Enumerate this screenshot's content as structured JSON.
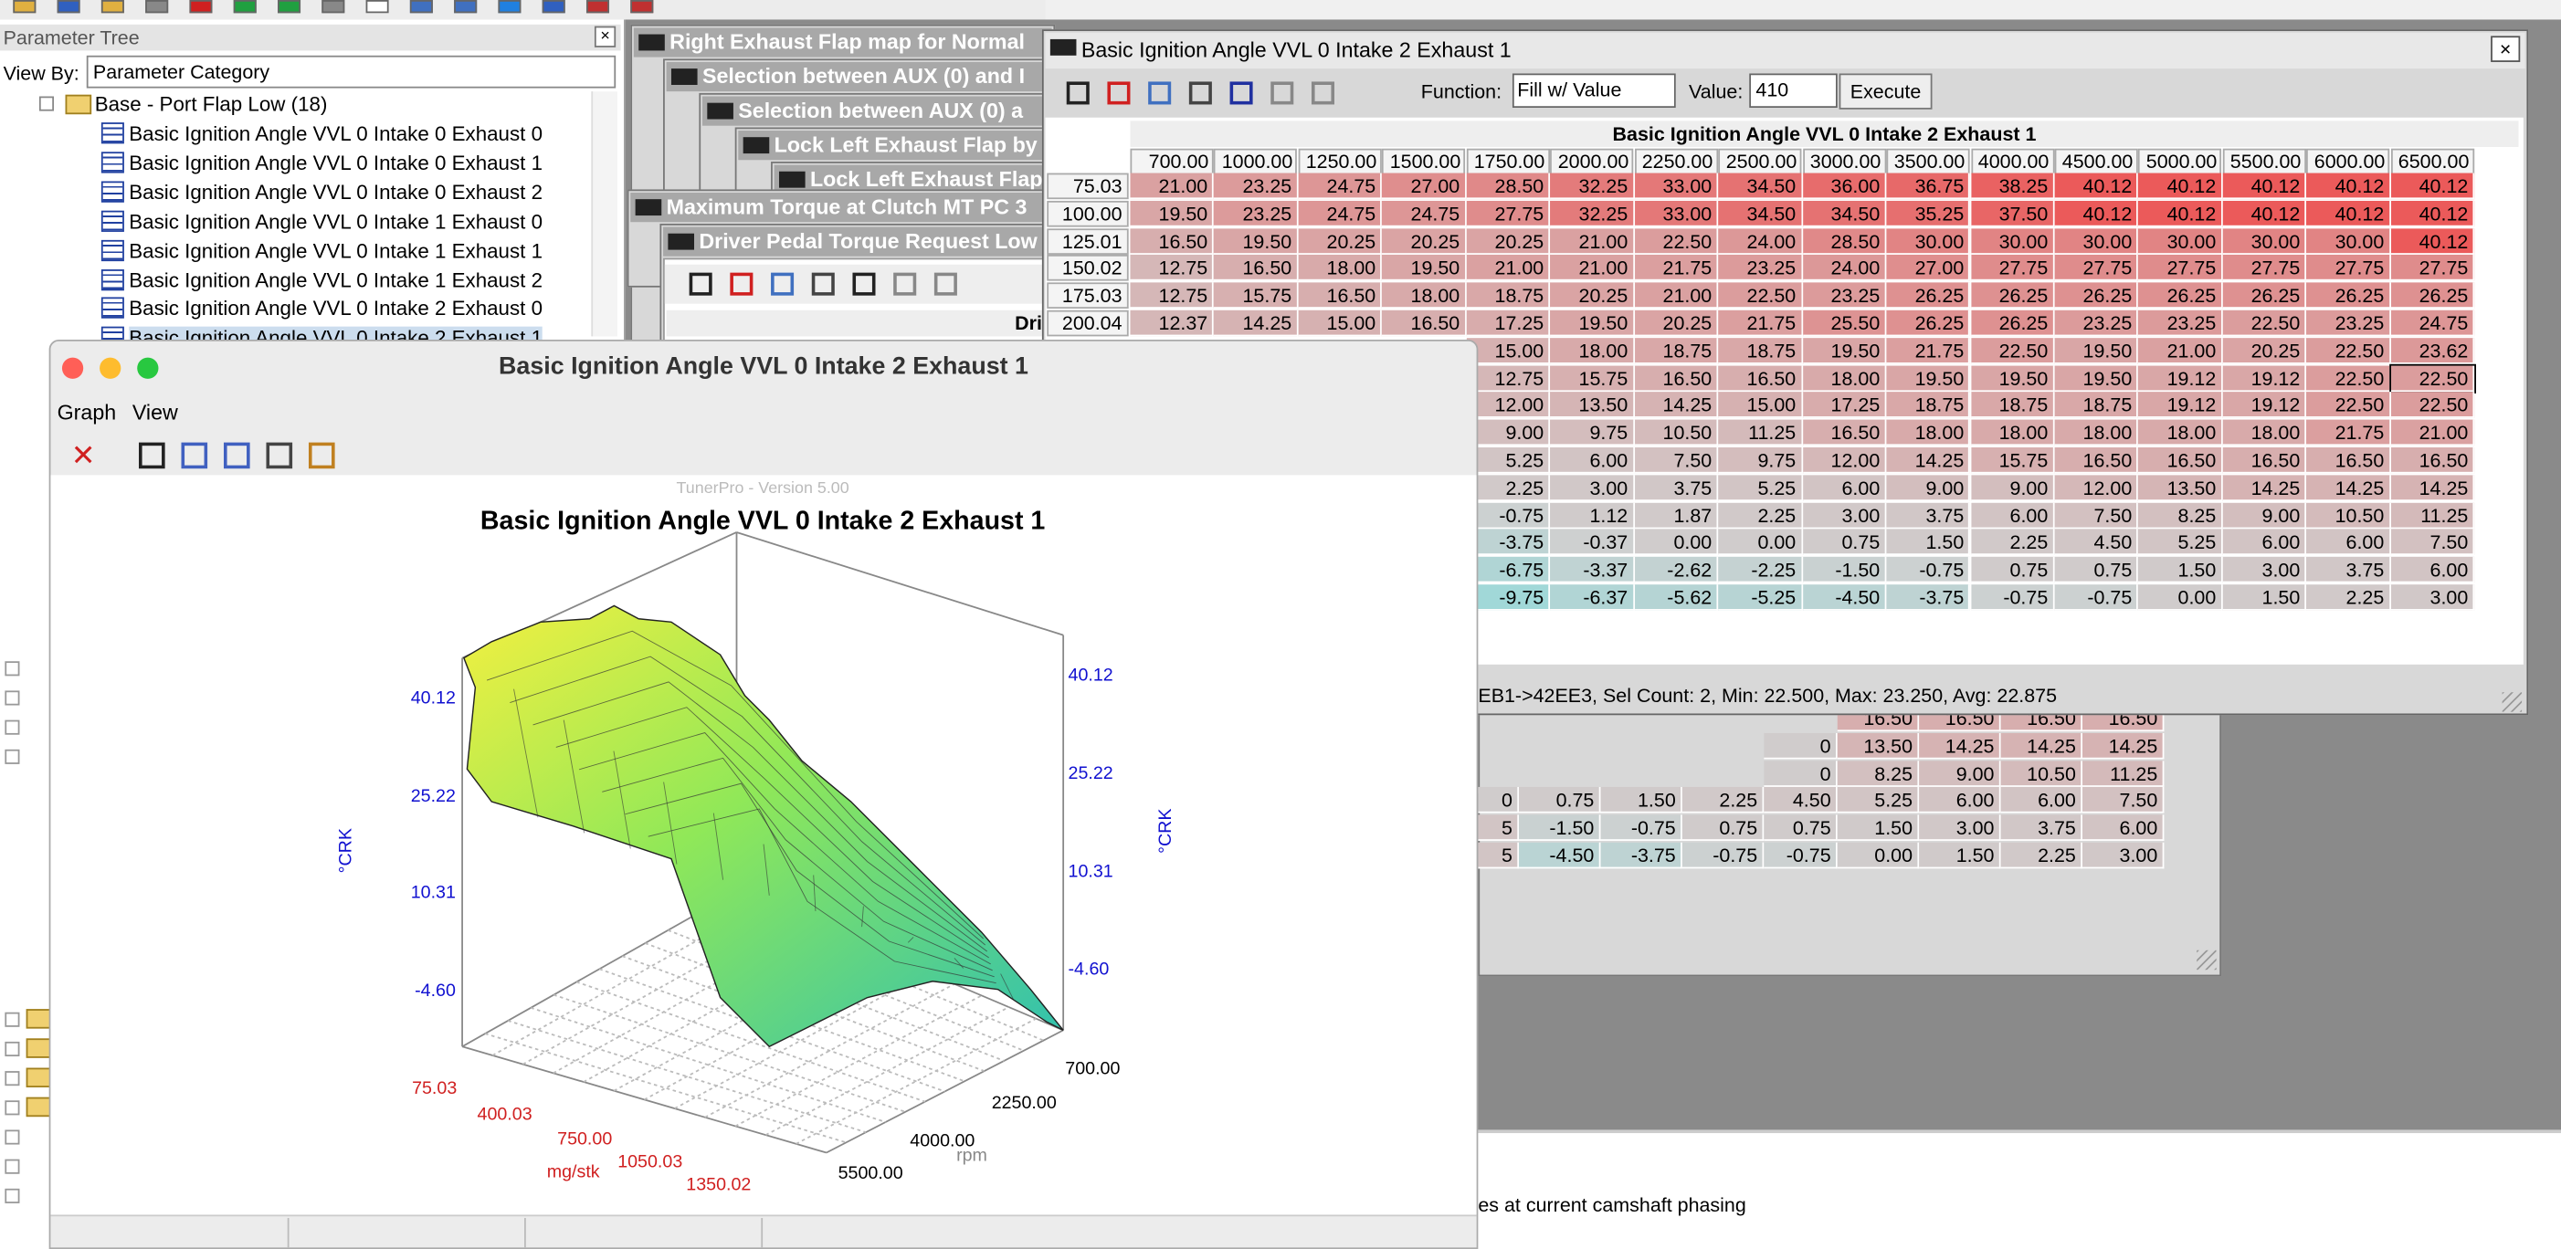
{
  "parameter_tree": {
    "title": "Parameter Tree",
    "view_by_label": "View By:",
    "view_by_value": "Parameter Category",
    "folder": "Base - Port Flap Low (18)",
    "items": [
      "Basic Ignition Angle VVL 0 Intake 0 Exhaust 0",
      "Basic Ignition Angle VVL 0 Intake 0 Exhaust 1",
      "Basic Ignition Angle VVL 0 Intake 0 Exhaust 2",
      "Basic Ignition Angle VVL 0 Intake 1 Exhaust 0",
      "Basic Ignition Angle VVL 0 Intake 1 Exhaust 1",
      "Basic Ignition Angle VVL 0 Intake 1 Exhaust 2",
      "Basic Ignition Angle VVL 0 Intake 2 Exhaust 0",
      "Basic Ignition Angle VVL 0 Intake 2 Exhaust 1"
    ]
  },
  "background_windows": [
    "Right Exhaust Flap map for Normal",
    "Selection between AUX (0) and I",
    "Selection between AUX (0) a",
    "Lock Left Exhaust Flap by",
    "Lock Left Exhaust Flap",
    "Maximum Torque at Clutch MT PC 3",
    "Driver Pedal Torque Request Low"
  ],
  "background_table_header": "Dri",
  "background_table_rows": [
    [
      "16.50",
      "16.50",
      "16.50",
      "16.50"
    ],
    [
      "0",
      "13.50",
      "14.25",
      "14.25",
      "14.25"
    ],
    [
      "0",
      "8.25",
      "9.00",
      "10.50",
      "11.25"
    ],
    [
      "0",
      "0.75",
      "1.50",
      "2.25",
      "4.50",
      "5.25",
      "6.00",
      "6.00",
      "7.50"
    ],
    [
      "5",
      "-1.50",
      "-0.75",
      "0.75",
      "0.75",
      "1.50",
      "3.00",
      "3.75",
      "6.00"
    ],
    [
      "5",
      "-4.50",
      "-3.75",
      "-0.75",
      "-0.75",
      "0.00",
      "1.50",
      "2.25",
      "3.00"
    ]
  ],
  "status_text": "es at current camshaft phasing",
  "table_window": {
    "title": "Basic Ignition Angle VVL 0 Intake 2 Exhaust 1",
    "function_label": "Function:",
    "function_value": "Fill w/ Value",
    "value_label": "Value:",
    "value_input": "410",
    "execute": "Execute",
    "table_title": "Basic Ignition Angle VVL 0 Intake 2 Exhaust 1",
    "columns": [
      "700.00",
      "1000.00",
      "1250.00",
      "1500.00",
      "1750.00",
      "2000.00",
      "2250.00",
      "2500.00",
      "3000.00",
      "3500.00",
      "4000.00",
      "4500.00",
      "5000.00",
      "5500.00",
      "6000.00",
      "6500.00"
    ],
    "rows": [
      {
        "label": "75.03",
        "cells": [
          "21.00",
          "23.25",
          "24.75",
          "27.00",
          "28.50",
          "32.25",
          "33.00",
          "34.50",
          "36.00",
          "36.75",
          "38.25",
          "40.12",
          "40.12",
          "40.12",
          "40.12",
          "40.12"
        ]
      },
      {
        "label": "100.00",
        "cells": [
          "19.50",
          "23.25",
          "24.75",
          "24.75",
          "27.75",
          "32.25",
          "33.00",
          "34.50",
          "34.50",
          "35.25",
          "37.50",
          "40.12",
          "40.12",
          "40.12",
          "40.12",
          "40.12"
        ]
      },
      {
        "label": "125.01",
        "cells": [
          "16.50",
          "19.50",
          "20.25",
          "20.25",
          "20.25",
          "21.00",
          "22.50",
          "24.00",
          "28.50",
          "30.00",
          "30.00",
          "30.00",
          "30.00",
          "30.00",
          "30.00",
          "40.12"
        ]
      },
      {
        "label": "150.02",
        "cells": [
          "12.75",
          "16.50",
          "18.00",
          "19.50",
          "21.00",
          "21.00",
          "21.75",
          "23.25",
          "24.00",
          "27.00",
          "27.75",
          "27.75",
          "27.75",
          "27.75",
          "27.75",
          "27.75"
        ]
      },
      {
        "label": "175.03",
        "cells": [
          "12.75",
          "15.75",
          "16.50",
          "18.00",
          "18.75",
          "20.25",
          "21.00",
          "22.50",
          "23.25",
          "26.25",
          "26.25",
          "26.25",
          "26.25",
          "26.25",
          "26.25",
          "26.25"
        ]
      },
      {
        "label": "200.04",
        "cells": [
          "12.37",
          "14.25",
          "15.00",
          "16.50",
          "17.25",
          "19.50",
          "20.25",
          "21.75",
          "25.50",
          "26.25",
          "26.25",
          "23.25",
          "23.25",
          "22.50",
          "23.25",
          "24.75"
        ]
      },
      {
        "cells": [
          "15.00",
          "18.00",
          "18.75",
          "18.75",
          "19.50",
          "21.75",
          "22.50",
          "19.50",
          "21.00",
          "20.25",
          "22.50",
          "23.62"
        ]
      },
      {
        "cells": [
          "12.75",
          "15.75",
          "16.50",
          "16.50",
          "18.00",
          "19.50",
          "19.50",
          "19.50",
          "19.12",
          "19.12",
          "22.50",
          "22.50"
        ]
      },
      {
        "cells": [
          "12.00",
          "13.50",
          "14.25",
          "15.00",
          "17.25",
          "18.75",
          "18.75",
          "18.75",
          "19.12",
          "19.12",
          "22.50",
          "22.50"
        ]
      },
      {
        "cells": [
          "9.00",
          "9.75",
          "10.50",
          "11.25",
          "16.50",
          "18.00",
          "18.00",
          "18.00",
          "18.00",
          "18.00",
          "21.75",
          "21.00"
        ]
      },
      {
        "cells": [
          "5.25",
          "6.00",
          "7.50",
          "9.75",
          "12.00",
          "14.25",
          "15.75",
          "16.50",
          "16.50",
          "16.50",
          "16.50",
          "16.50"
        ]
      },
      {
        "cells": [
          "2.25",
          "3.00",
          "3.75",
          "5.25",
          "6.00",
          "9.00",
          "9.00",
          "12.00",
          "13.50",
          "14.25",
          "14.25",
          "14.25"
        ]
      },
      {
        "cells": [
          "-0.75",
          "1.12",
          "1.87",
          "2.25",
          "3.00",
          "3.75",
          "6.00",
          "7.50",
          "8.25",
          "9.00",
          "10.50",
          "11.25"
        ]
      },
      {
        "cells": [
          "-3.75",
          "-0.37",
          "0.00",
          "0.00",
          "0.75",
          "1.50",
          "2.25",
          "4.50",
          "5.25",
          "6.00",
          "6.00",
          "7.50"
        ]
      },
      {
        "cells": [
          "-6.75",
          "-3.37",
          "-2.62",
          "-2.25",
          "-1.50",
          "-0.75",
          "0.75",
          "0.75",
          "1.50",
          "3.00",
          "3.75",
          "6.00"
        ]
      },
      {
        "cells": [
          "-9.75",
          "-6.37",
          "-5.62",
          "-5.25",
          "-4.50",
          "-3.75",
          "-0.75",
          "-0.75",
          "0.00",
          "1.50",
          "2.25",
          "3.00"
        ]
      }
    ],
    "status": "EB1->42EE3, Sel Count: 2, Min: 22.500, Max: 23.250, Avg: 22.875"
  },
  "graph_window": {
    "title": "Basic Ignition Angle VVL 0 Intake 2 Exhaust 1",
    "menu": [
      "Graph",
      "View"
    ],
    "watermark": "TunerPro - Version 5.00",
    "chart_title": "Basic Ignition Angle VVL 0 Intake 2 Exhaust 1",
    "z_ticks": [
      "40.12",
      "25.22",
      "10.31",
      "-4.60"
    ],
    "z_label": "°CRK",
    "y_ticks": [
      "75.03",
      "400.03",
      "750.00",
      "1050.03",
      "1350.02"
    ],
    "y_label": "mg/stk",
    "x_ticks": [
      "700.00",
      "2250.00",
      "4000.00",
      "5500.00"
    ],
    "x_label": "rpm"
  }
}
